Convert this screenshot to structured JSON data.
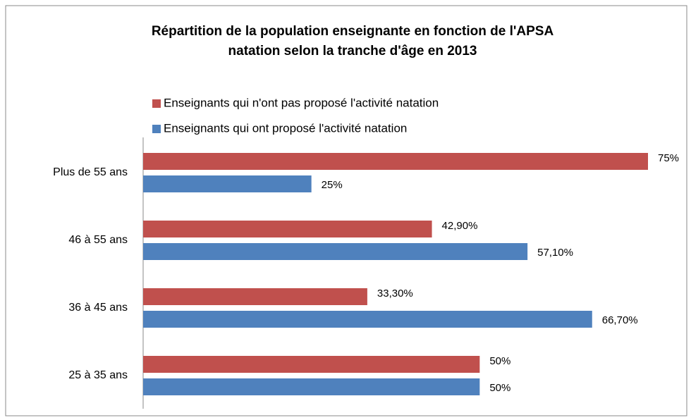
{
  "chart_data": {
    "type": "hbar",
    "title": "Répartition de la population enseignante en fonction de l'APSA",
    "subtitle": "natation selon la tranche d'âge en 2013",
    "categories": [
      "Plus de 55 ans",
      "46 à 55 ans",
      "36 à 45 ans",
      "25 à 35 ans"
    ],
    "series": [
      {
        "name": "Enseignants qui n'ont pas proposé l'activité natation",
        "color": "#c0504d",
        "values": [
          75,
          42.9,
          33.3,
          50
        ],
        "value_labels": [
          "75%",
          "42,90%",
          "33,30%",
          "50%"
        ]
      },
      {
        "name": "Enseignants qui ont proposé l'activité natation",
        "color": "#4f81bd",
        "values": [
          25,
          57.1,
          66.7,
          50
        ],
        "value_labels": [
          "25%",
          "57,10%",
          "66,70%",
          "50%"
        ]
      }
    ],
    "xlim": [
      0,
      75
    ]
  }
}
